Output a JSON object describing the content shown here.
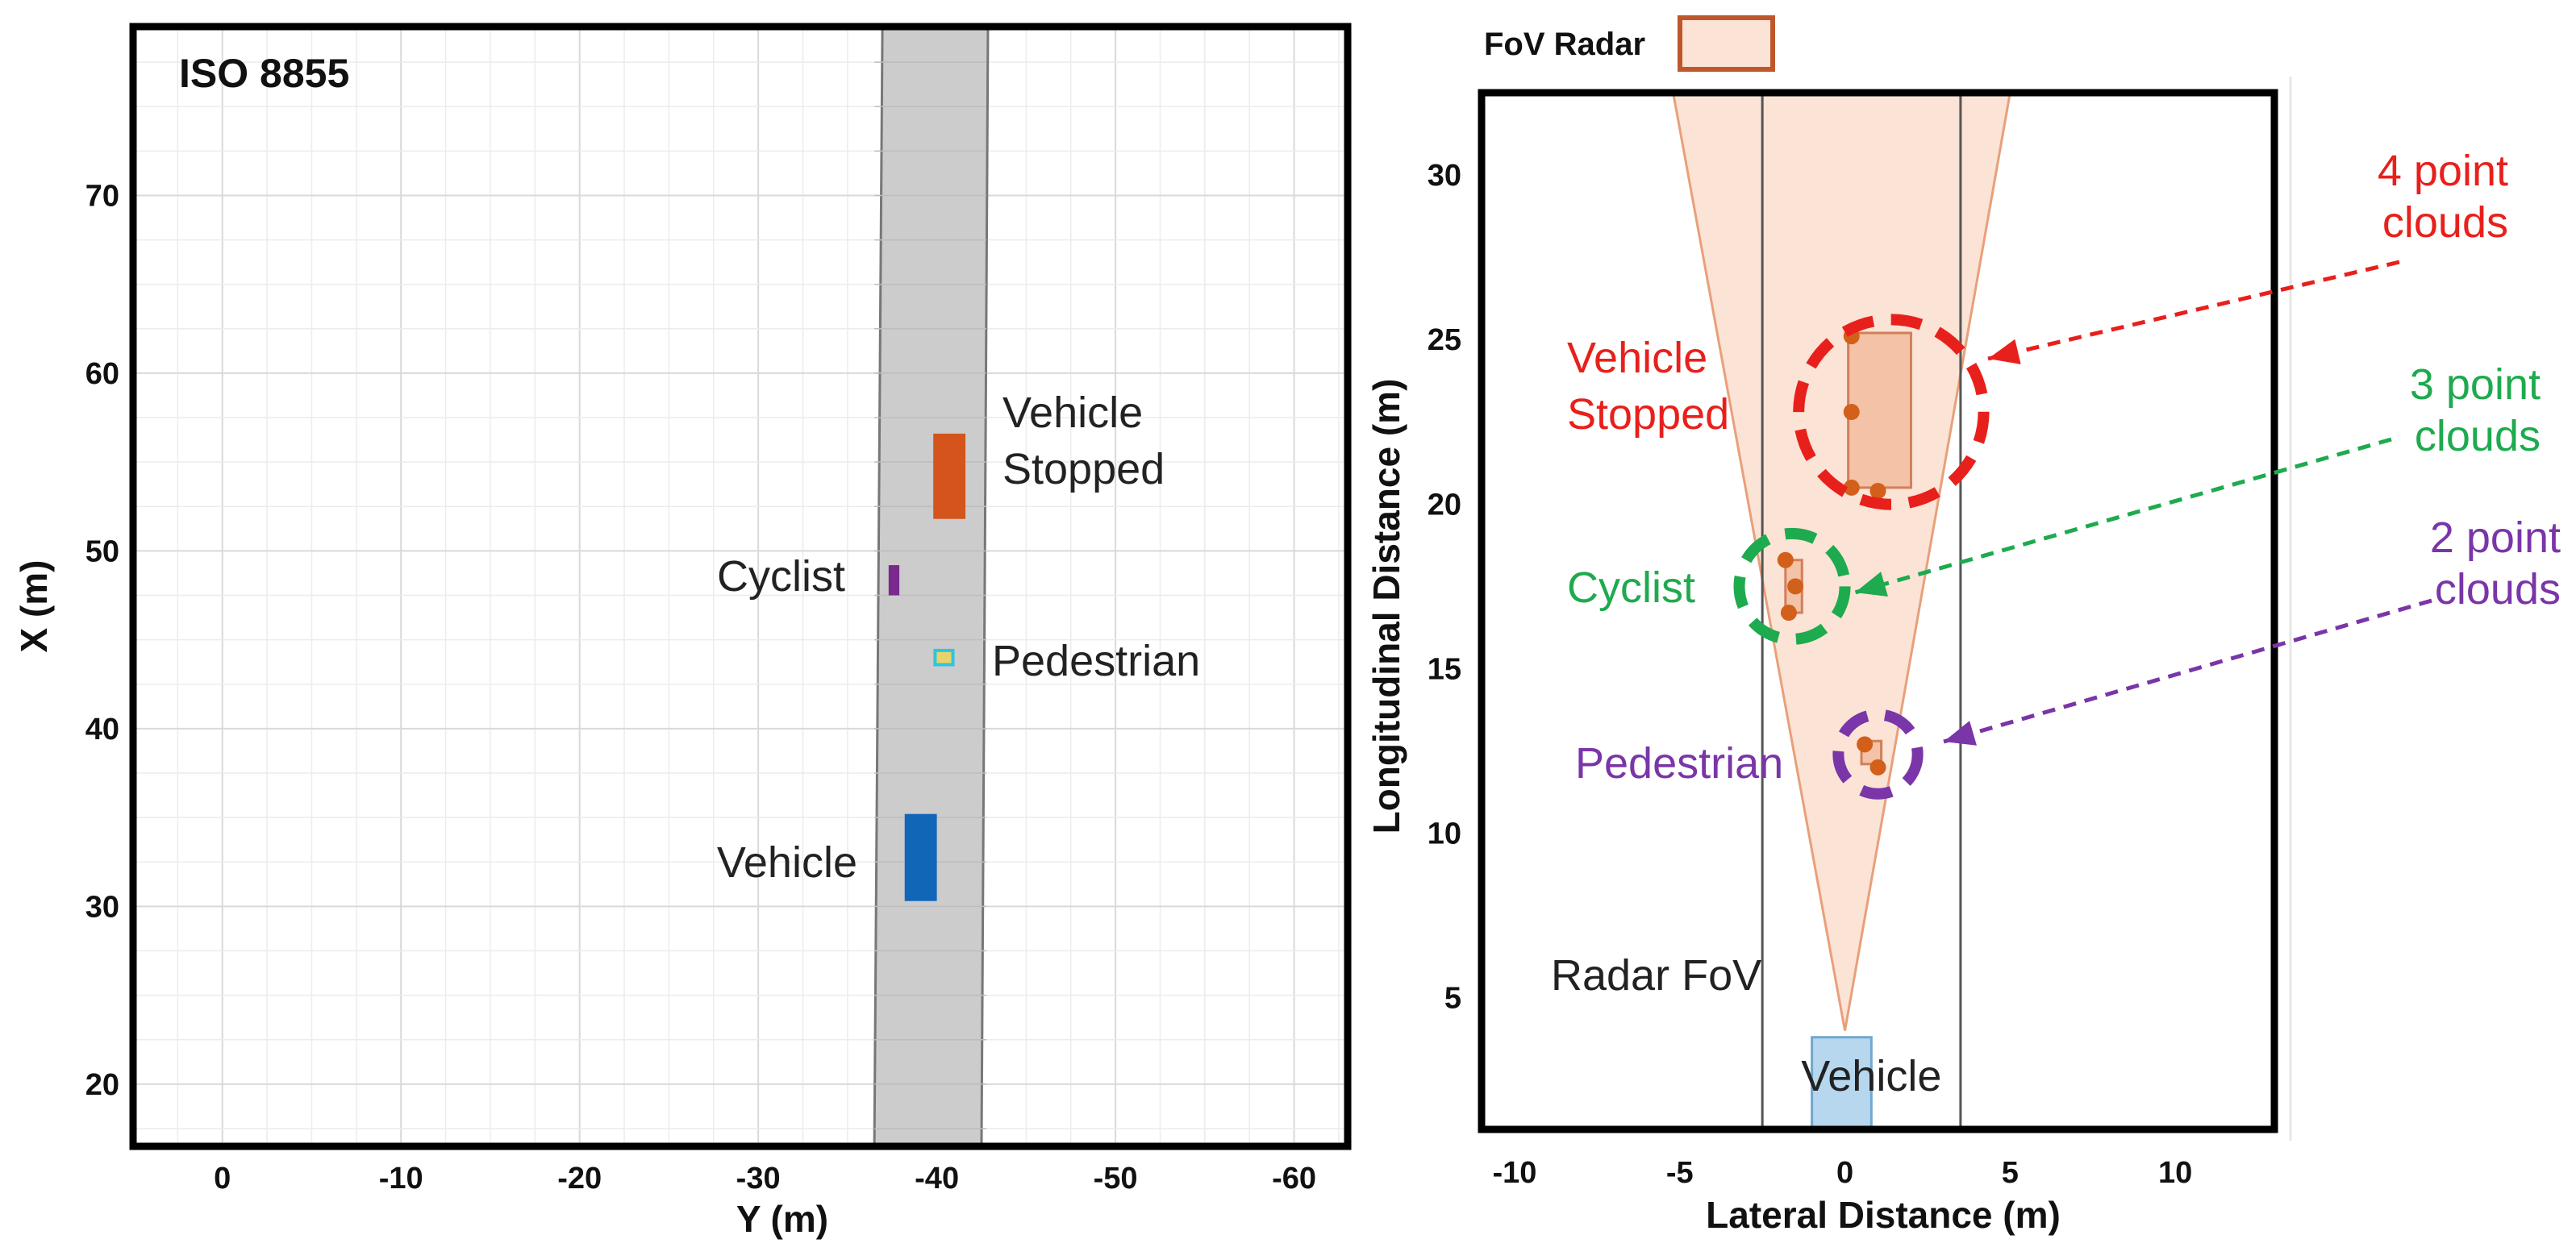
{
  "colors": {
    "road": "#cccccc",
    "vehicle_stopped": "#d4541c",
    "cyclist": "#7a2a8c",
    "pedestrian": "#2ec4e0",
    "vehicle": "#1266b8",
    "fov_fill": "#fbe3d6",
    "fov_edge": "#e8a07a",
    "point": "#d2601a",
    "red": "#e8201c",
    "green": "#1eaa4e",
    "purple": "#7a35a8",
    "ego_vehicle": "#b7d7ee"
  },
  "chart_data": [
    {
      "type": "scatter",
      "title": "ISO 8855",
      "xlabel": "Y (m)",
      "ylabel": "X (m)",
      "xlim": [
        5,
        -63
      ],
      "ylim": [
        16.5,
        79.5
      ],
      "x_reversed": true,
      "xticks": [
        0,
        -10,
        -20,
        -30,
        -40,
        -50,
        -60
      ],
      "yticks": [
        20,
        30,
        40,
        50,
        60,
        70
      ],
      "grid": true,
      "road": {
        "y_range": [
          -36.5,
          -42.5
        ],
        "x_range": [
          16.5,
          79.5
        ]
      },
      "objects": [
        {
          "label": "Vehicle Stopped",
          "lines": [
            "Vehicle",
            "Stopped"
          ],
          "y_range": [
            -39.8,
            -41.6
          ],
          "x_range": [
            51.8,
            56.6
          ],
          "color_key": "vehicle_stopped"
        },
        {
          "label": "Cyclist",
          "lines": [
            "Cyclist"
          ],
          "y_range": [
            -37.3,
            -37.9
          ],
          "x_range": [
            47.5,
            49.2
          ],
          "color_key": "cyclist"
        },
        {
          "label": "Pedestrian",
          "lines": [
            "Pedestrian"
          ],
          "y_range": [
            -39.9,
            -40.9
          ],
          "x_range": [
            43.6,
            44.4
          ],
          "color_key": "pedestrian"
        },
        {
          "label": "Vehicle",
          "lines": [
            "Vehicle"
          ],
          "y_range": [
            -38.2,
            -40.0
          ],
          "x_range": [
            30.3,
            35.2
          ],
          "color_key": "vehicle"
        }
      ]
    },
    {
      "type": "scatter",
      "title": "",
      "xlabel": "Lateral Distance (m)",
      "ylabel": "Longitudinal Distance (m)",
      "xlim": [
        -11,
        13
      ],
      "ylim": [
        1,
        32.5
      ],
      "xticks": [
        -10,
        -5,
        0,
        5,
        10
      ],
      "yticks": [
        5,
        10,
        15,
        20,
        25,
        30
      ],
      "legend": {
        "label": "FoV Radar",
        "position": "top-left"
      },
      "fov_label": "Radar FoV",
      "fov": {
        "apex": [
          0,
          4
        ],
        "left_edge_at_top": -5.2,
        "right_edge_at_top": 5,
        "top": 32.5
      },
      "lane_lines": [
        -2.5,
        3.5
      ],
      "ego_vehicle": {
        "label": "Vehicle",
        "x_range": [
          -1,
          0.8
        ],
        "y_range": [
          1,
          3.8
        ]
      },
      "targets": [
        {
          "label": "Vehicle Stopped",
          "lines": [
            "Vehicle",
            "Stopped"
          ],
          "color_key": "red",
          "box": {
            "x_range": [
              0.1,
              2
            ],
            "y_range": [
              20.5,
              25.2
            ]
          },
          "points": [
            [
              0.2,
              25.1
            ],
            [
              0.2,
              22.8
            ],
            [
              0.2,
              20.5
            ],
            [
              1.0,
              20.4
            ]
          ],
          "circle": {
            "center": [
              1.4,
              22.8
            ],
            "r": 2.8
          },
          "annotation": [
            "4 point",
            "clouds"
          ]
        },
        {
          "label": "Cyclist",
          "lines": [
            "Cyclist"
          ],
          "color_key": "green",
          "box": {
            "x_range": [
              -1.8,
              -1.3
            ],
            "y_range": [
              16.7,
              18.3
            ]
          },
          "points": [
            [
              -1.8,
              18.3
            ],
            [
              -1.5,
              17.5
            ],
            [
              -1.7,
              16.7
            ]
          ],
          "circle": {
            "center": [
              -1.6,
              17.5
            ],
            "r": 1.6
          },
          "annotation": [
            "3 point",
            "clouds"
          ]
        },
        {
          "label": "Pedestrian",
          "lines": [
            "Pedestrian"
          ],
          "color_key": "purple",
          "box": {
            "x_range": [
              0.5,
              1.1
            ],
            "y_range": [
              12.1,
              12.8
            ]
          },
          "points": [
            [
              0.6,
              12.7
            ],
            [
              1.0,
              12.0
            ]
          ],
          "circle": {
            "center": [
              1.0,
              12.4
            ],
            "r": 1.2
          },
          "annotation": [
            "2 point",
            "clouds"
          ]
        }
      ]
    }
  ]
}
